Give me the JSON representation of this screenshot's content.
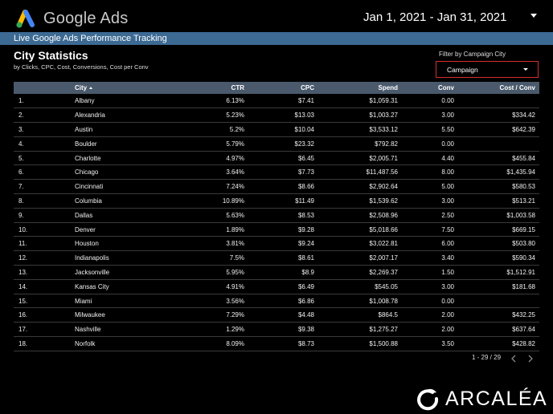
{
  "header": {
    "brand": "Google Ads",
    "date_range": "Jan 1, 2021 - Jan 31, 2021",
    "logo_icon": "google-ads-logo-icon",
    "logo_colors": {
      "blue": "#4285f4",
      "yellow": "#fbbc04",
      "green": "#34a853"
    }
  },
  "banner": {
    "text": "Live Google Ads Performance Tracking",
    "color": "#3c6a93"
  },
  "section": {
    "title": "City Statistics",
    "subtitle": "by Clicks, CPC, Cost, Conversions, Cost per Conv"
  },
  "filter": {
    "label": "Filter by Campaign City",
    "value": "Campaign",
    "border_color": "#d32f2f"
  },
  "table": {
    "columns": [
      "",
      "City",
      "CTR",
      "CPC",
      "Spend",
      "Conv",
      "Cost / Conv"
    ],
    "sort_icon": "sort-ascending-icon",
    "rows": [
      [
        "1.",
        "Albany",
        "6.13%",
        "$7.41",
        "$1,059.31",
        "0.00",
        ""
      ],
      [
        "2.",
        "Alexandria",
        "5.23%",
        "$13.03",
        "$1,003.27",
        "3.00",
        "$334.42"
      ],
      [
        "3.",
        "Austin",
        "5.2%",
        "$10.04",
        "$3,533.12",
        "5.50",
        "$642.39"
      ],
      [
        "4.",
        "Boulder",
        "5.79%",
        "$23.32",
        "$792.82",
        "0.00",
        ""
      ],
      [
        "5.",
        "Charlotte",
        "4.97%",
        "$6.45",
        "$2,005.71",
        "4.40",
        "$455.84"
      ],
      [
        "6.",
        "Chicago",
        "3.64%",
        "$7.73",
        "$11,487.56",
        "8.00",
        "$1,435.94"
      ],
      [
        "7.",
        "Cincinnati",
        "7.24%",
        "$8.66",
        "$2,902.64",
        "5.00",
        "$580.53"
      ],
      [
        "8.",
        "Columbia",
        "10.89%",
        "$11.49",
        "$1,539.62",
        "3.00",
        "$513.21"
      ],
      [
        "9.",
        "Dallas",
        "5.63%",
        "$8.53",
        "$2,508.96",
        "2.50",
        "$1,003.58"
      ],
      [
        "10.",
        "Denver",
        "1.89%",
        "$9.28",
        "$5,018.66",
        "7.50",
        "$669.15"
      ],
      [
        "11.",
        "Houston",
        "3.81%",
        "$9.24",
        "$3,022.81",
        "6.00",
        "$503.80"
      ],
      [
        "12.",
        "Indianapolis",
        "7.5%",
        "$8.61",
        "$2,007.17",
        "3.40",
        "$590.34"
      ],
      [
        "13.",
        "Jacksonville",
        "5.95%",
        "$8.9",
        "$2,269.37",
        "1.50",
        "$1,512.91"
      ],
      [
        "14.",
        "Kansas City",
        "4.91%",
        "$6.49",
        "$545.05",
        "3.00",
        "$181.68"
      ],
      [
        "15.",
        "Miami",
        "3.56%",
        "$6.86",
        "$1,008.78",
        "0.00",
        ""
      ],
      [
        "16.",
        "Milwaukee",
        "7.29%",
        "$4.48",
        "$864.5",
        "2.00",
        "$432.25"
      ],
      [
        "17.",
        "Nashville",
        "1.29%",
        "$9.38",
        "$1,275.27",
        "2.00",
        "$637.64"
      ],
      [
        "18.",
        "Norfolk",
        "8.09%",
        "$8.73",
        "$1,500.88",
        "3.50",
        "$428.82"
      ]
    ]
  },
  "pagination": {
    "text": "1 - 29 / 29",
    "prev_icon": "chevron-left-icon",
    "next_icon": "chevron-right-icon"
  },
  "footer": {
    "brand": "ARCALÉA",
    "logo_icon": "arcalea-logo-icon"
  }
}
